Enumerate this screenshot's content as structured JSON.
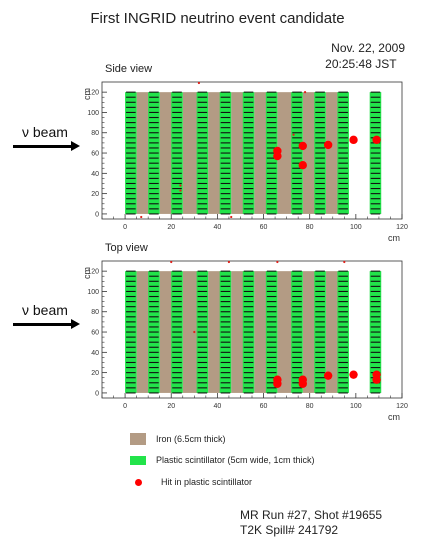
{
  "title": "First INGRID neutrino event candidate",
  "date": "Nov. 22, 2009",
  "time": "20:25:48 JST",
  "beam_label": "ν beam",
  "legend": [
    {
      "label": "Iron (6.5cm thick)",
      "color": "#b39b84",
      "shape": "square"
    },
    {
      "label": "Plastic scintillator (5cm wide, 1cm thick)",
      "color": "#22e34a",
      "shape": "rect"
    },
    {
      "label": "Hit in plastic scintillator",
      "color": "#ff0000",
      "shape": "dot"
    }
  ],
  "footer": {
    "run_shot": "MR Run #27, Shot #19655",
    "spill": "T2K Spill# 241792"
  },
  "colors": {
    "iron": "#b39b84",
    "scintillator": "#22e34a",
    "stripe": "#111111",
    "hit": "#ff0000",
    "noise": "#e0201a"
  },
  "chart_data": [
    {
      "type": "scatter",
      "title": "Side view",
      "xlabel": "cm",
      "ylabel": "cm",
      "xlim": [
        -10,
        120
      ],
      "ylim": [
        -5,
        130
      ],
      "xticks": [
        0,
        20,
        40,
        60,
        80,
        100,
        120
      ],
      "yticks": [
        0,
        20,
        40,
        60,
        80,
        100,
        120
      ],
      "iron_planes": [
        [
          5,
          12
        ],
        [
          15,
          22
        ],
        [
          25,
          32
        ],
        [
          36,
          43
        ],
        [
          46,
          53
        ],
        [
          56,
          63
        ],
        [
          66,
          73
        ],
        [
          77,
          84
        ],
        [
          87,
          94
        ]
      ],
      "scintillator_planes": [
        [
          0,
          5
        ],
        [
          10,
          15
        ],
        [
          20,
          25
        ],
        [
          31,
          36
        ],
        [
          41,
          46
        ],
        [
          51,
          56
        ],
        [
          61,
          66
        ],
        [
          72,
          77
        ],
        [
          82,
          87
        ],
        [
          92,
          97
        ],
        [
          106,
          111
        ]
      ],
      "detector_y": [
        0,
        120
      ],
      "hits": [
        {
          "x": 66,
          "y": 62
        },
        {
          "x": 66,
          "y": 57
        },
        {
          "x": 77,
          "y": 67
        },
        {
          "x": 77,
          "y": 48
        },
        {
          "x": 88,
          "y": 68
        },
        {
          "x": 99,
          "y": 73
        },
        {
          "x": 109,
          "y": 73
        }
      ],
      "noise": [
        {
          "x": 32,
          "y": 129
        },
        {
          "x": 7,
          "y": -3
        },
        {
          "x": 46,
          "y": -3
        },
        {
          "x": 24,
          "y": 28
        },
        {
          "x": 24,
          "y": 23
        },
        {
          "x": 73,
          "y": 78
        },
        {
          "x": 78,
          "y": 120
        }
      ]
    },
    {
      "type": "scatter",
      "title": "Top view",
      "xlabel": "cm",
      "ylabel": "cm",
      "xlim": [
        -10,
        120
      ],
      "ylim": [
        -5,
        130
      ],
      "xticks": [
        0,
        20,
        40,
        60,
        80,
        100,
        120
      ],
      "yticks": [
        0,
        20,
        40,
        60,
        80,
        100,
        120
      ],
      "iron_planes": [
        [
          5,
          12
        ],
        [
          15,
          22
        ],
        [
          25,
          32
        ],
        [
          36,
          43
        ],
        [
          46,
          53
        ],
        [
          56,
          63
        ],
        [
          66,
          73
        ],
        [
          77,
          84
        ],
        [
          87,
          94
        ]
      ],
      "scintillator_planes": [
        [
          0,
          5
        ],
        [
          10,
          15
        ],
        [
          20,
          25
        ],
        [
          31,
          36
        ],
        [
          41,
          46
        ],
        [
          51,
          56
        ],
        [
          61,
          66
        ],
        [
          72,
          77
        ],
        [
          82,
          87
        ],
        [
          92,
          97
        ],
        [
          106,
          111
        ]
      ],
      "detector_y": [
        0,
        120
      ],
      "hits": [
        {
          "x": 66,
          "y": 13
        },
        {
          "x": 66,
          "y": 9
        },
        {
          "x": 77,
          "y": 13
        },
        {
          "x": 77,
          "y": 9
        },
        {
          "x": 88,
          "y": 17
        },
        {
          "x": 99,
          "y": 18
        },
        {
          "x": 109,
          "y": 18
        },
        {
          "x": 109,
          "y": 13
        }
      ],
      "noise": [
        {
          "x": 20,
          "y": 129
        },
        {
          "x": 45,
          "y": 129
        },
        {
          "x": 30,
          "y": 60
        },
        {
          "x": 66,
          "y": 129
        },
        {
          "x": 95,
          "y": 129
        }
      ]
    }
  ]
}
